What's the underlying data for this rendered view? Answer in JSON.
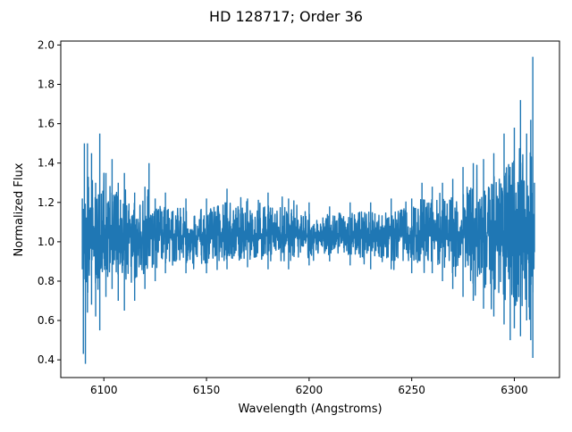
{
  "chart_data": {
    "type": "line",
    "title": "HD 128717; Order 36",
    "xlabel": "Wavelength (Angstroms)",
    "ylabel": "Normalized Flux",
    "xlim": [
      6079,
      6322
    ],
    "ylim": [
      0.31,
      2.02
    ],
    "xticks": [
      6100,
      6150,
      6200,
      6250,
      6300
    ],
    "yticks": [
      0.4,
      0.6,
      0.8,
      1.0,
      1.2,
      1.4,
      1.6,
      1.8,
      2.0
    ],
    "grid": false,
    "legend": "none",
    "series": [
      {
        "color": "#1f77b4",
        "x_range": [
          6089.5,
          6309.8
        ],
        "envelope_top": [
          [
            6089.5,
            1.22
          ],
          [
            6090.5,
            1.5
          ],
          [
            6092.0,
            1.5
          ],
          [
            6094.0,
            1.45
          ],
          [
            6096.0,
            1.3
          ],
          [
            6098.0,
            1.55
          ],
          [
            6101.0,
            1.35
          ],
          [
            6104.0,
            1.42
          ],
          [
            6107.0,
            1.3
          ],
          [
            6110.0,
            1.35
          ],
          [
            6115.0,
            1.25
          ],
          [
            6120.0,
            1.28
          ],
          [
            6122.0,
            1.4
          ],
          [
            6125.0,
            1.22
          ],
          [
            6130.0,
            1.25
          ],
          [
            6140.0,
            1.22
          ],
          [
            6150.0,
            1.22
          ],
          [
            6160.0,
            1.27
          ],
          [
            6170.0,
            1.22
          ],
          [
            6180.0,
            1.25
          ],
          [
            6190.0,
            1.22
          ],
          [
            6200.0,
            1.2
          ],
          [
            6210.0,
            1.18
          ],
          [
            6220.0,
            1.2
          ],
          [
            6230.0,
            1.2
          ],
          [
            6240.0,
            1.22
          ],
          [
            6250.0,
            1.22
          ],
          [
            6255.0,
            1.3
          ],
          [
            6260.0,
            1.28
          ],
          [
            6265.0,
            1.3
          ],
          [
            6270.0,
            1.32
          ],
          [
            6275.0,
            1.38
          ],
          [
            6280.0,
            1.4
          ],
          [
            6285.0,
            1.42
          ],
          [
            6290.0,
            1.45
          ],
          [
            6295.0,
            1.55
          ],
          [
            6300.0,
            1.58
          ],
          [
            6303.0,
            1.72
          ],
          [
            6306.0,
            1.55
          ],
          [
            6308.0,
            1.62
          ],
          [
            6309.0,
            1.94
          ],
          [
            6309.8,
            1.3
          ]
        ],
        "envelope_bottom": [
          [
            6089.5,
            0.86
          ],
          [
            6090.0,
            0.43
          ],
          [
            6091.0,
            0.38
          ],
          [
            6092.0,
            0.64
          ],
          [
            6094.0,
            0.68
          ],
          [
            6096.0,
            0.62
          ],
          [
            6098.0,
            0.55
          ],
          [
            6101.0,
            0.72
          ],
          [
            6104.0,
            0.76
          ],
          [
            6107.0,
            0.7
          ],
          [
            6110.0,
            0.65
          ],
          [
            6115.0,
            0.7
          ],
          [
            6120.0,
            0.76
          ],
          [
            6125.0,
            0.8
          ],
          [
            6130.0,
            0.84
          ],
          [
            6140.0,
            0.84
          ],
          [
            6150.0,
            0.84
          ],
          [
            6160.0,
            0.86
          ],
          [
            6170.0,
            0.87
          ],
          [
            6180.0,
            0.86
          ],
          [
            6190.0,
            0.86
          ],
          [
            6200.0,
            0.88
          ],
          [
            6210.0,
            0.9
          ],
          [
            6220.0,
            0.88
          ],
          [
            6230.0,
            0.86
          ],
          [
            6240.0,
            0.86
          ],
          [
            6250.0,
            0.84
          ],
          [
            6260.0,
            0.84
          ],
          [
            6265.0,
            0.8
          ],
          [
            6270.0,
            0.76
          ],
          [
            6275.0,
            0.72
          ],
          [
            6280.0,
            0.7
          ],
          [
            6285.0,
            0.66
          ],
          [
            6290.0,
            0.62
          ],
          [
            6295.0,
            0.58
          ],
          [
            6298.0,
            0.5
          ],
          [
            6300.0,
            0.56
          ],
          [
            6303.0,
            0.52
          ],
          [
            6306.0,
            0.6
          ],
          [
            6308.0,
            0.5
          ],
          [
            6309.0,
            0.41
          ],
          [
            6309.8,
            0.95
          ]
        ]
      }
    ]
  }
}
